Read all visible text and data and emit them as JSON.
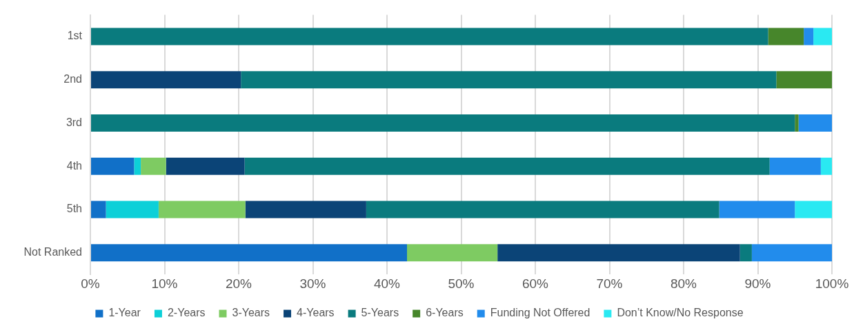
{
  "chart_data": {
    "type": "bar",
    "orientation": "horizontal",
    "stacked": true,
    "categories": [
      "1st",
      "2nd",
      "3rd",
      "4th",
      "5th",
      "Not Ranked"
    ],
    "series": [
      {
        "name": "1-Year",
        "color": "#1170c8",
        "values": [
          0,
          0,
          0,
          5.9,
          2.1,
          42.7
        ]
      },
      {
        "name": "2-Years",
        "color": "#0dd0d8",
        "values": [
          0,
          0,
          0,
          0.9,
          7.1,
          0
        ]
      },
      {
        "name": "3-Years",
        "color": "#7ecb62",
        "values": [
          0,
          0,
          0,
          3.4,
          11.7,
          12.2
        ]
      },
      {
        "name": "4-Years",
        "color": "#0b4477",
        "values": [
          0,
          20.3,
          0,
          10.6,
          16.3,
          32.7
        ]
      },
      {
        "name": "5-Years",
        "color": "#0a7b7e",
        "values": [
          91.4,
          72.2,
          95.0,
          70.8,
          47.6,
          1.6
        ]
      },
      {
        "name": "6-Years",
        "color": "#47862b",
        "values": [
          4.8,
          7.5,
          0.5,
          0,
          0,
          0
        ]
      },
      {
        "name": "Funding Not Offered",
        "color": "#228cec",
        "values": [
          1.3,
          0,
          4.5,
          6.9,
          10.2,
          10.8
        ]
      },
      {
        "name": "Don’t Know/No Response",
        "color": "#2ae9f2",
        "values": [
          2.5,
          0,
          0,
          1.5,
          5.0,
          0
        ]
      }
    ],
    "xlim": [
      0,
      100
    ],
    "xticks": [
      {
        "value": 0,
        "label": "0%"
      },
      {
        "value": 10,
        "label": "10%"
      },
      {
        "value": 20,
        "label": "20%"
      },
      {
        "value": 30,
        "label": "30%"
      },
      {
        "value": 40,
        "label": "40%"
      },
      {
        "value": 50,
        "label": "50%"
      },
      {
        "value": 60,
        "label": "60%"
      },
      {
        "value": 70,
        "label": "70%"
      },
      {
        "value": 80,
        "label": "80%"
      },
      {
        "value": 90,
        "label": "90%"
      },
      {
        "value": 100,
        "label": "100%"
      }
    ],
    "grid": "x",
    "legend": "bottom"
  }
}
